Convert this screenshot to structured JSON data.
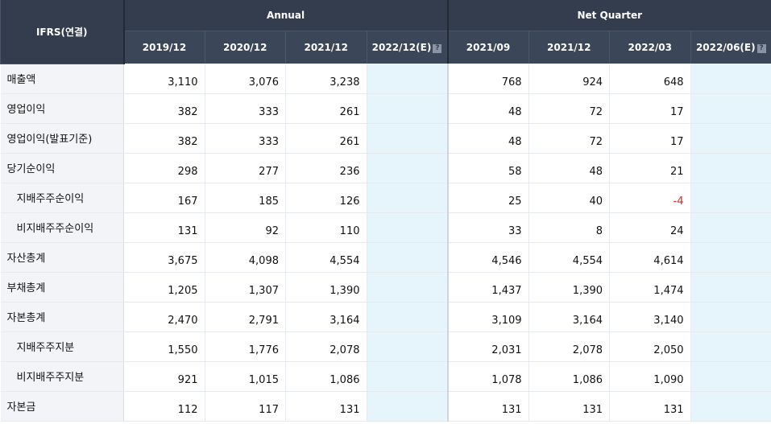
{
  "table": {
    "corner_label": "IFRS(연결)",
    "groups": [
      {
        "label": "Annual"
      },
      {
        "label": "Net Quarter"
      }
    ],
    "help_icon": "help-icon",
    "columns": [
      {
        "label": "2019/12",
        "estimate": false
      },
      {
        "label": "2020/12",
        "estimate": false
      },
      {
        "label": "2021/12",
        "estimate": false
      },
      {
        "label": "2022/12(E)",
        "estimate": true
      },
      {
        "label": "2021/09",
        "estimate": false
      },
      {
        "label": "2021/12",
        "estimate": false
      },
      {
        "label": "2022/03",
        "estimate": false
      },
      {
        "label": "2022/06(E)",
        "estimate": true
      }
    ],
    "rows": [
      {
        "name": "매출액",
        "sub": false,
        "values": [
          "3,110",
          "3,076",
          "3,238",
          "",
          "768",
          "924",
          "648",
          ""
        ]
      },
      {
        "name": "영업이익",
        "sub": false,
        "values": [
          "382",
          "333",
          "261",
          "",
          "48",
          "72",
          "17",
          ""
        ]
      },
      {
        "name": "영업이익(발표기준)",
        "sub": false,
        "values": [
          "382",
          "333",
          "261",
          "",
          "48",
          "72",
          "17",
          ""
        ]
      },
      {
        "name": "당기순이익",
        "sub": false,
        "values": [
          "298",
          "277",
          "236",
          "",
          "58",
          "48",
          "21",
          ""
        ]
      },
      {
        "name": "지배주주순이익",
        "sub": true,
        "values": [
          "167",
          "185",
          "126",
          "",
          "25",
          "40",
          "-4",
          ""
        ]
      },
      {
        "name": "비지배주주순이익",
        "sub": true,
        "values": [
          "131",
          "92",
          "110",
          "",
          "33",
          "8",
          "24",
          ""
        ]
      },
      {
        "name": "자산총계",
        "sub": false,
        "values": [
          "3,675",
          "4,098",
          "4,554",
          "",
          "4,546",
          "4,554",
          "4,614",
          ""
        ]
      },
      {
        "name": "부채총계",
        "sub": false,
        "values": [
          "1,205",
          "1,307",
          "1,390",
          "",
          "1,437",
          "1,390",
          "1,474",
          ""
        ]
      },
      {
        "name": "자본총계",
        "sub": false,
        "values": [
          "2,470",
          "2,791",
          "3,164",
          "",
          "3,109",
          "3,164",
          "3,140",
          ""
        ]
      },
      {
        "name": "지배주주지분",
        "sub": true,
        "values": [
          "1,550",
          "1,776",
          "2,078",
          "",
          "2,031",
          "2,078",
          "2,050",
          ""
        ]
      },
      {
        "name": "비지배주주지분",
        "sub": true,
        "values": [
          "921",
          "1,015",
          "1,086",
          "",
          "1,078",
          "1,086",
          "1,090",
          ""
        ]
      },
      {
        "name": "자본금",
        "sub": false,
        "values": [
          "112",
          "117",
          "131",
          "",
          "131",
          "131",
          "131",
          ""
        ]
      }
    ],
    "colors": {
      "header_bg": "#333d4e",
      "label_bg": "#f3f4f8",
      "estimate_bg": "#e6f4fb",
      "negative": "#e8231d"
    }
  }
}
